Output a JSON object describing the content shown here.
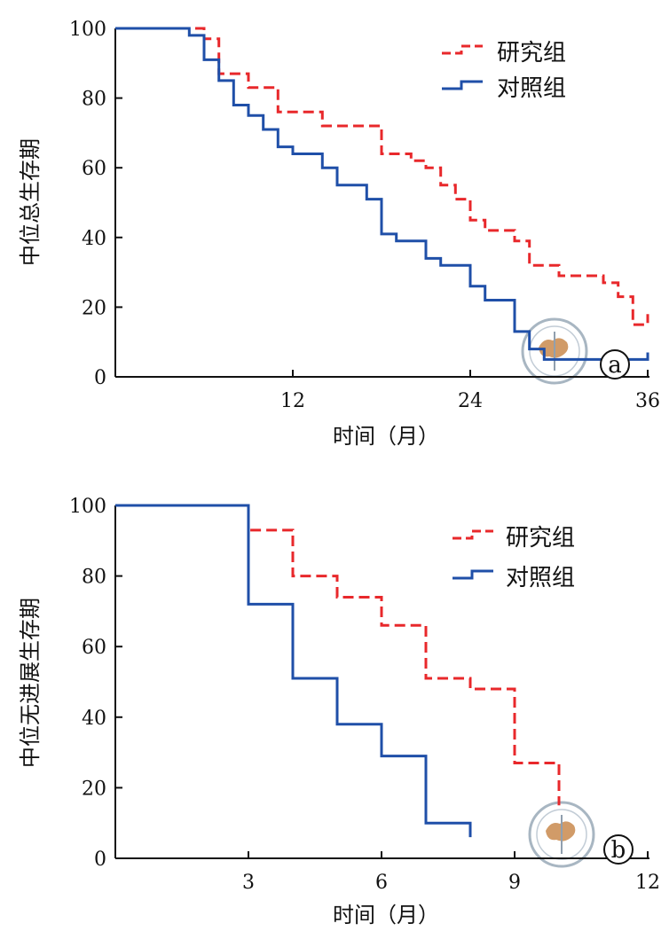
{
  "chart_data": [
    {
      "type": "line",
      "subtype": "kaplan-meier-step",
      "panel_label": "a",
      "xlabel": "时间（月）",
      "ylabel": "中位总生存期",
      "xlim": [
        0,
        36
      ],
      "ylim": [
        0,
        100
      ],
      "x_ticks": [
        "12",
        "24",
        "36"
      ],
      "y_ticks": [
        "0",
        "20",
        "40",
        "60",
        "80",
        "100"
      ],
      "grid": false,
      "legend_position": "top-right",
      "series": [
        {
          "name": "研究组",
          "color": "#e8282b",
          "dash": true,
          "points": [
            [
              0,
              100
            ],
            [
              6,
              100
            ],
            [
              6,
              97
            ],
            [
              7,
              97
            ],
            [
              7,
              87
            ],
            [
              9,
              87
            ],
            [
              9,
              83
            ],
            [
              11,
              83
            ],
            [
              11,
              76
            ],
            [
              14,
              76
            ],
            [
              14,
              72
            ],
            [
              18,
              72
            ],
            [
              18,
              70
            ],
            [
              18,
              64
            ],
            [
              20,
              64
            ],
            [
              20,
              62
            ],
            [
              21,
              62
            ],
            [
              21,
              60
            ],
            [
              22,
              60
            ],
            [
              22,
              55
            ],
            [
              23,
              55
            ],
            [
              23,
              51
            ],
            [
              24,
              51
            ],
            [
              24,
              45
            ],
            [
              25,
              45
            ],
            [
              25,
              42
            ],
            [
              27,
              42
            ],
            [
              27,
              39
            ],
            [
              28,
              39
            ],
            [
              28,
              32
            ],
            [
              30,
              32
            ],
            [
              30,
              29
            ],
            [
              33,
              29
            ],
            [
              33,
              27
            ],
            [
              34,
              27
            ],
            [
              34,
              23
            ],
            [
              35,
              23
            ],
            [
              35,
              15
            ],
            [
              36,
              15
            ],
            [
              36,
              18
            ]
          ]
        },
        {
          "name": "对照组",
          "color": "#1f4fa8",
          "dash": false,
          "points": [
            [
              0,
              100
            ],
            [
              5,
              100
            ],
            [
              5,
              98
            ],
            [
              6,
              98
            ],
            [
              6,
              91
            ],
            [
              7,
              91
            ],
            [
              7,
              85
            ],
            [
              8,
              85
            ],
            [
              8,
              78
            ],
            [
              9,
              78
            ],
            [
              9,
              75
            ],
            [
              10,
              75
            ],
            [
              10,
              71
            ],
            [
              11,
              71
            ],
            [
              11,
              66
            ],
            [
              12,
              66
            ],
            [
              12,
              64
            ],
            [
              14,
              64
            ],
            [
              14,
              60
            ],
            [
              15,
              60
            ],
            [
              15,
              55
            ],
            [
              17,
              55
            ],
            [
              17,
              51
            ],
            [
              18,
              51
            ],
            [
              18,
              41
            ],
            [
              19,
              41
            ],
            [
              19,
              39
            ],
            [
              21,
              39
            ],
            [
              21,
              34
            ],
            [
              22,
              34
            ],
            [
              22,
              32
            ],
            [
              24,
              32
            ],
            [
              24,
              26
            ],
            [
              25,
              26
            ],
            [
              25,
              22
            ],
            [
              27,
              22
            ],
            [
              27,
              13
            ],
            [
              28,
              13
            ],
            [
              28,
              8
            ],
            [
              29,
              8
            ],
            [
              29,
              5
            ],
            [
              36,
              5
            ],
            [
              36,
              7
            ]
          ]
        }
      ]
    },
    {
      "type": "line",
      "subtype": "kaplan-meier-step",
      "panel_label": "b",
      "xlabel": "时间（月）",
      "ylabel": "中位无进展生存期",
      "xlim": [
        0,
        12
      ],
      "ylim": [
        0,
        100
      ],
      "x_ticks": [
        "3",
        "6",
        "9",
        "12"
      ],
      "y_ticks": [
        "0",
        "20",
        "40",
        "60",
        "80",
        "100"
      ],
      "grid": false,
      "legend_position": "top-right",
      "series": [
        {
          "name": "研究组",
          "color": "#e8282b",
          "dash": true,
          "points": [
            [
              0,
              100
            ],
            [
              3,
              100
            ],
            [
              3,
              93
            ],
            [
              4,
              93
            ],
            [
              4,
              80
            ],
            [
              5,
              80
            ],
            [
              5,
              74
            ],
            [
              6,
              74
            ],
            [
              6,
              66
            ],
            [
              7,
              66
            ],
            [
              7,
              51
            ],
            [
              8,
              51
            ],
            [
              8,
              48
            ],
            [
              9,
              48
            ],
            [
              9,
              27
            ],
            [
              10,
              27
            ],
            [
              10,
              15
            ]
          ]
        },
        {
          "name": "对照组",
          "color": "#1f4fa8",
          "dash": false,
          "points": [
            [
              0,
              100
            ],
            [
              3,
              100
            ],
            [
              3,
              72
            ],
            [
              4,
              72
            ],
            [
              4,
              51
            ],
            [
              5,
              51
            ],
            [
              5,
              38
            ],
            [
              6,
              38
            ],
            [
              6,
              29
            ],
            [
              7,
              29
            ],
            [
              7,
              10
            ],
            [
              8,
              10
            ],
            [
              8,
              6
            ]
          ]
        }
      ]
    }
  ]
}
